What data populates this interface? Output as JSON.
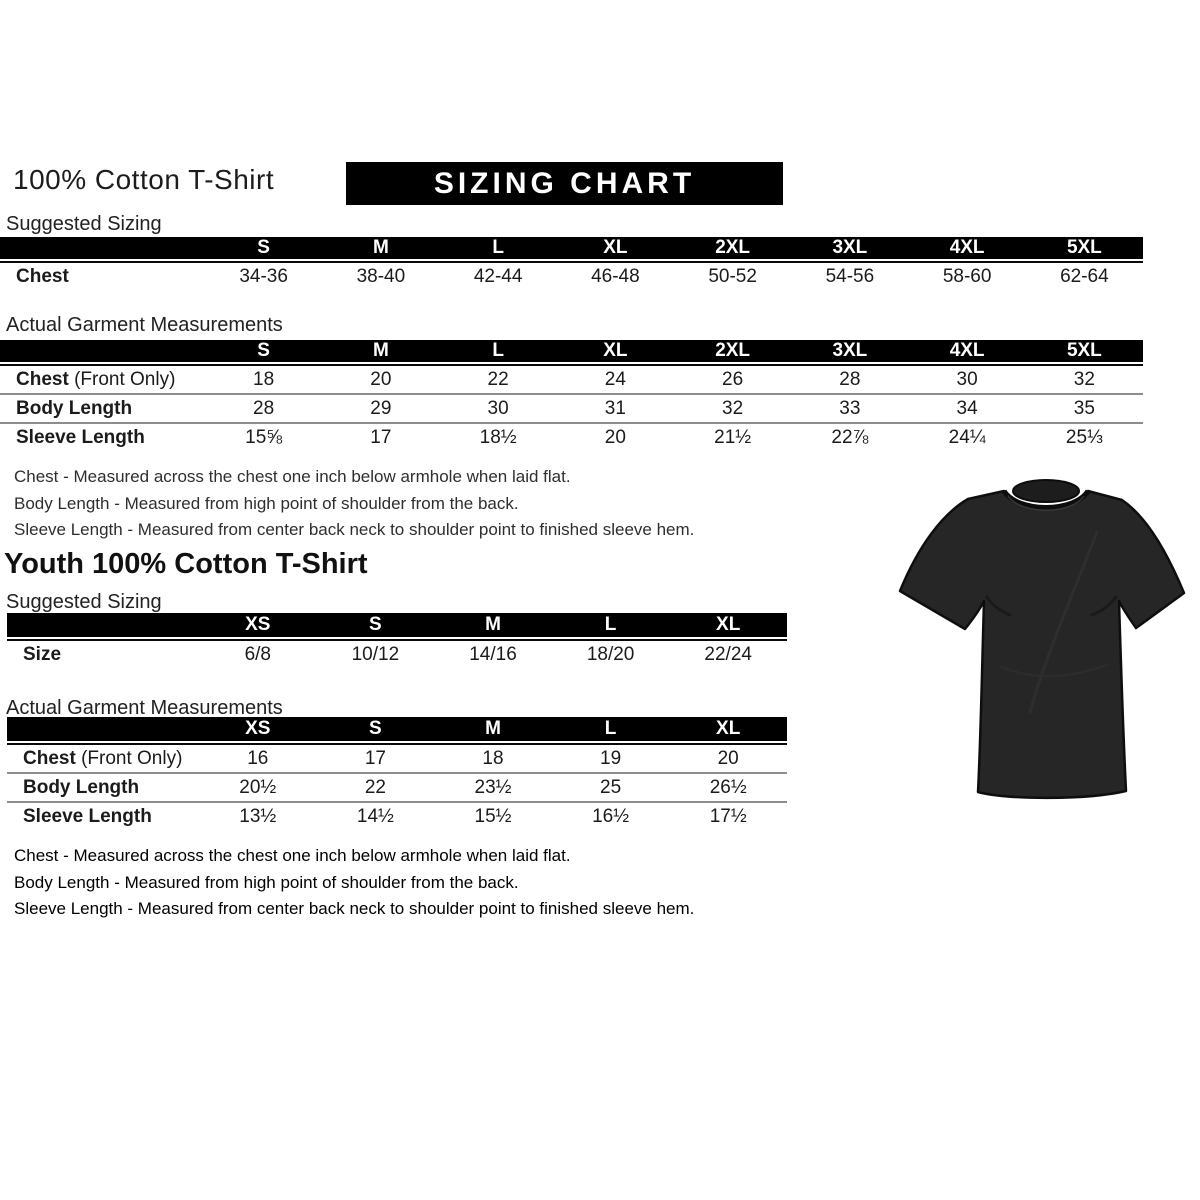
{
  "header": {
    "title": "100% Cotton T-Shirt",
    "banner": "SIZING CHART"
  },
  "adult": {
    "suggested": {
      "title": "Suggested Sizing",
      "columns": [
        "S",
        "M",
        "L",
        "XL",
        "2XL",
        "3XL",
        "4XL",
        "5XL"
      ],
      "rows": [
        {
          "label": "Chest",
          "suffix": "",
          "values": [
            "34-36",
            "38-40",
            "42-44",
            "46-48",
            "50-52",
            "54-56",
            "58-60",
            "62-64"
          ]
        }
      ]
    },
    "actual": {
      "title": "Actual Garment Measurements",
      "columns": [
        "S",
        "M",
        "L",
        "XL",
        "2XL",
        "3XL",
        "4XL",
        "5XL"
      ],
      "rows": [
        {
          "label": "Chest",
          "suffix": " (Front Only)",
          "values": [
            "18",
            "20",
            "22",
            "24",
            "26",
            "28",
            "30",
            "32"
          ]
        },
        {
          "label": "Body Length",
          "suffix": "",
          "values": [
            "28",
            "29",
            "30",
            "31",
            "32",
            "33",
            "34",
            "35"
          ]
        },
        {
          "label": "Sleeve Length",
          "suffix": "",
          "values": [
            "15⅝",
            "17",
            "18½",
            "20",
            "21½",
            "22⅞",
            "24¼",
            "25⅓"
          ]
        }
      ]
    },
    "notes": [
      "Chest - Measured across the chest one inch below armhole when laid flat.",
      "Body Length - Measured from high point of shoulder from the back.",
      "Sleeve Length - Measured from center back neck to shoulder point to finished sleeve hem."
    ]
  },
  "youth": {
    "title": "Youth 100% Cotton T-Shirt",
    "suggested": {
      "title": "Suggested Sizing",
      "columns": [
        "XS",
        "S",
        "M",
        "L",
        "XL"
      ],
      "rows": [
        {
          "label": "Size",
          "suffix": "",
          "values": [
            "6/8",
            "10/12",
            "14/16",
            "18/20",
            "22/24"
          ]
        }
      ]
    },
    "actual": {
      "title": "Actual Garment Measurements",
      "columns": [
        "XS",
        "S",
        "M",
        "L",
        "XL"
      ],
      "rows": [
        {
          "label": "Chest",
          "suffix": " (Front Only)",
          "values": [
            "16",
            "17",
            "18",
            "19",
            "20"
          ]
        },
        {
          "label": "Body Length",
          "suffix": "",
          "values": [
            "20½",
            "22",
            "23½",
            "25",
            "26½"
          ]
        },
        {
          "label": "Sleeve Length",
          "suffix": "",
          "values": [
            "13½",
            "14½",
            "15½",
            "16½",
            "17½"
          ]
        }
      ]
    },
    "notes": [
      "Chest - Measured across the chest one inch below armhole when laid flat.",
      "Body Length - Measured from high point of shoulder from the back.",
      "Sleeve Length - Measured from center back neck to shoulder point to finished sleeve hem."
    ]
  },
  "tshirt": {
    "name": "black-cotton-tshirt-photo",
    "color": "#262626"
  },
  "colors": {
    "header_bar": "#000000",
    "header_text": "#ffffff",
    "body_text": "#1a1a1a",
    "separator": "#8d8d8d"
  }
}
